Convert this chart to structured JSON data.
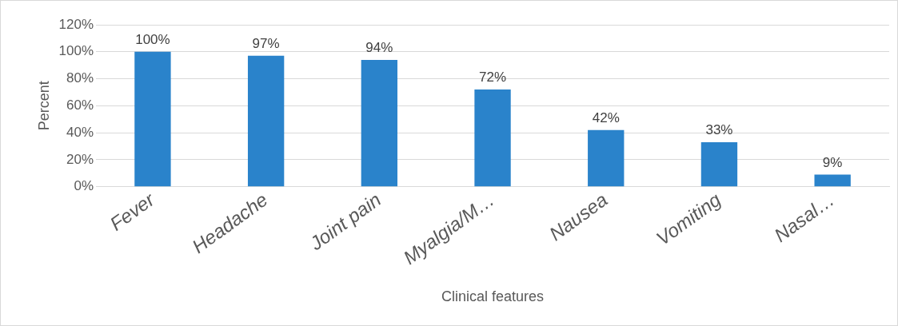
{
  "chart_data": {
    "type": "bar",
    "xlabel": "Clinical features",
    "ylabel": "Percent",
    "categories": [
      "Fever",
      "Headache",
      "Joint pain",
      "Myalgia/M…",
      "Nausea",
      "Vomiting",
      "Nasal…"
    ],
    "values": [
      100,
      97,
      94,
      72,
      42,
      33,
      9
    ],
    "value_labels": [
      "100%",
      "97%",
      "94%",
      "72%",
      "42%",
      "33%",
      "9%"
    ],
    "color": "#2a83cb",
    "ylim": [
      0,
      120
    ],
    "yticks": [
      {
        "value": 0,
        "label": "0%"
      },
      {
        "value": 20,
        "label": "20%"
      },
      {
        "value": 40,
        "label": "40%"
      },
      {
        "value": 60,
        "label": "60%"
      },
      {
        "value": 80,
        "label": "80%"
      },
      {
        "value": 100,
        "label": "100%"
      },
      {
        "value": 120,
        "label": "120%"
      }
    ],
    "grid": "y",
    "legend": false
  }
}
